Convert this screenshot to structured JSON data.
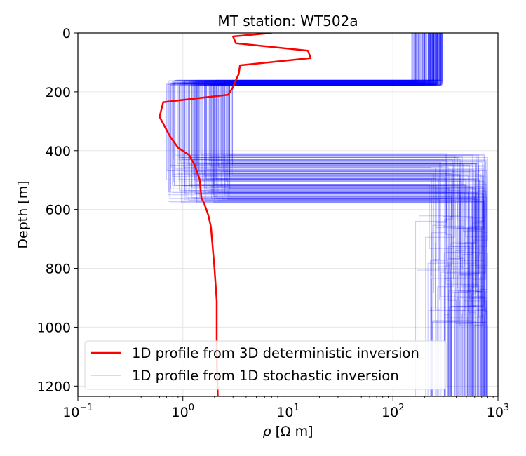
{
  "chart_data": {
    "type": "line",
    "title": "MT station: WT502a",
    "xlabel_symbol": "ρ",
    "xlabel_unit": " [Ω m]",
    "ylabel": "Depth [m]",
    "xscale": "log",
    "xlim": [
      0.1,
      1000
    ],
    "ylim": [
      1235,
      0
    ],
    "y_inverted": true,
    "grid": true,
    "x_ticks": [
      {
        "base": "10",
        "exp": "−1",
        "value": 0.1
      },
      {
        "base": "10",
        "exp": "0",
        "value": 1
      },
      {
        "base": "10",
        "exp": "1",
        "value": 10
      },
      {
        "base": "10",
        "exp": "2",
        "value": 100
      },
      {
        "base": "10",
        "exp": "3",
        "value": 1000
      }
    ],
    "y_ticks": [
      {
        "label": "0",
        "value": 0
      },
      {
        "label": "200",
        "value": 200
      },
      {
        "label": "400",
        "value": 400
      },
      {
        "label": "600",
        "value": 600
      },
      {
        "label": "800",
        "value": 800
      },
      {
        "label": "1000",
        "value": 1000
      },
      {
        "label": "1200",
        "value": 1200
      }
    ],
    "legend_position": "lower-left",
    "series": [
      {
        "name": "1D profile from 3D deterministic inversion",
        "color": "#ff0000",
        "style": "line",
        "points": [
          {
            "rho": 7.0,
            "depth": 0
          },
          {
            "rho": 3.0,
            "depth": 12
          },
          {
            "rho": 3.2,
            "depth": 35
          },
          {
            "rho": 15.5,
            "depth": 60
          },
          {
            "rho": 16.5,
            "depth": 85
          },
          {
            "rho": 3.5,
            "depth": 110
          },
          {
            "rho": 3.4,
            "depth": 140
          },
          {
            "rho": 3.2,
            "depth": 160
          },
          {
            "rho": 3.0,
            "depth": 185
          },
          {
            "rho": 2.7,
            "depth": 210
          },
          {
            "rho": 0.65,
            "depth": 235
          },
          {
            "rho": 0.6,
            "depth": 285
          },
          {
            "rho": 0.75,
            "depth": 350
          },
          {
            "rho": 0.9,
            "depth": 390
          },
          {
            "rho": 1.15,
            "depth": 415
          },
          {
            "rho": 1.3,
            "depth": 450
          },
          {
            "rho": 1.45,
            "depth": 500
          },
          {
            "rho": 1.5,
            "depth": 560
          },
          {
            "rho": 1.6,
            "depth": 580
          },
          {
            "rho": 1.75,
            "depth": 620
          },
          {
            "rho": 1.85,
            "depth": 660
          },
          {
            "rho": 2.0,
            "depth": 800
          },
          {
            "rho": 2.1,
            "depth": 910
          },
          {
            "rho": 2.1,
            "depth": 1100
          },
          {
            "rho": 2.15,
            "depth": 1235
          }
        ]
      },
      {
        "name": "1D profile from 1D stochastic inversion",
        "color": "#0000ff",
        "style": "step-ensemble",
        "ensemble_count": 160,
        "opacity": 0.22,
        "layers": [
          {
            "depth_top": 0,
            "rho_range": [
              150,
              300
            ]
          },
          {
            "depth_top": 170,
            "rho_range": [
              0.7,
              3.0
            ]
          },
          {
            "depth_top": 410,
            "rho_range": [
              200,
              800
            ]
          },
          {
            "depth_top": 620,
            "rho_range": [
              150,
              800
            ]
          }
        ]
      }
    ]
  }
}
